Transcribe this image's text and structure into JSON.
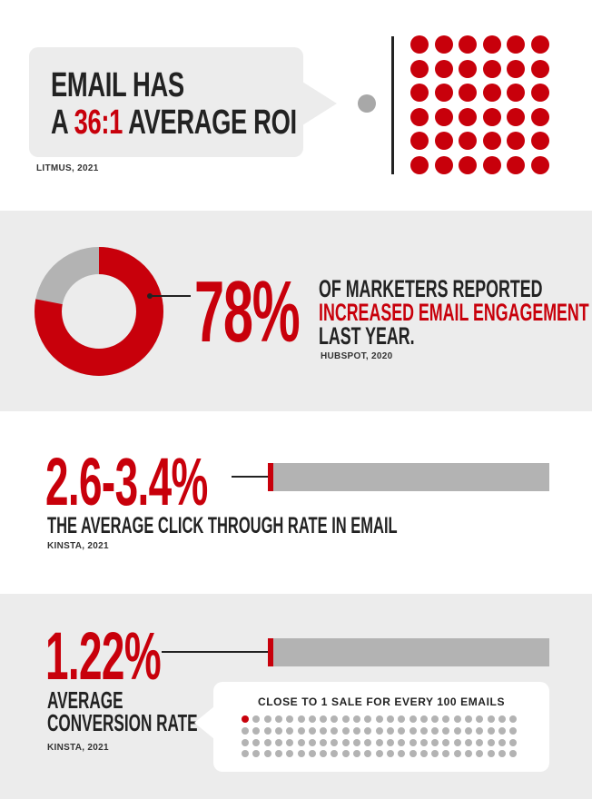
{
  "roi": {
    "headline_line1": "EMAIL HAS",
    "headline_line2_prefix": "A ",
    "headline_line2_highlight": "36:1",
    "headline_line2_suffix": " AVERAGE ROI",
    "source": "LITMUS, 2021",
    "dot_grid": {
      "rows": 6,
      "columns": 6,
      "count": 36
    }
  },
  "engagement": {
    "percent_label": "78%",
    "donut_value_percent": 78,
    "line1": "OF MARKETERS REPORTED",
    "line2": "INCREASED EMAIL ENGAGEMENT",
    "line3": "LAST YEAR.",
    "source": "HUBSPOT, 2020"
  },
  "ctr": {
    "value_label": "2.6-3.4%",
    "bar_fill_percent": 2.6,
    "label": "THE AVERAGE CLICK THROUGH RATE IN EMAIL",
    "source": "KINSTA, 2021"
  },
  "conversion": {
    "value_label": "1.22%",
    "bar_fill_percent": 1.22,
    "label_line1": "AVERAGE",
    "label_line2": "CONVERSION RATE",
    "source": "KINSTA, 2021",
    "callout": "CLOSE TO 1 SALE FOR EVERY 100 EMAILS",
    "dot_grid": {
      "rows": 4,
      "columns": 25,
      "count": 100,
      "highlighted": 1
    }
  },
  "colors": {
    "accent_red": "#c8000b",
    "dark_text": "#222222",
    "neutral_gray": "#b3b3b3",
    "panel_gray": "#ececec"
  }
}
